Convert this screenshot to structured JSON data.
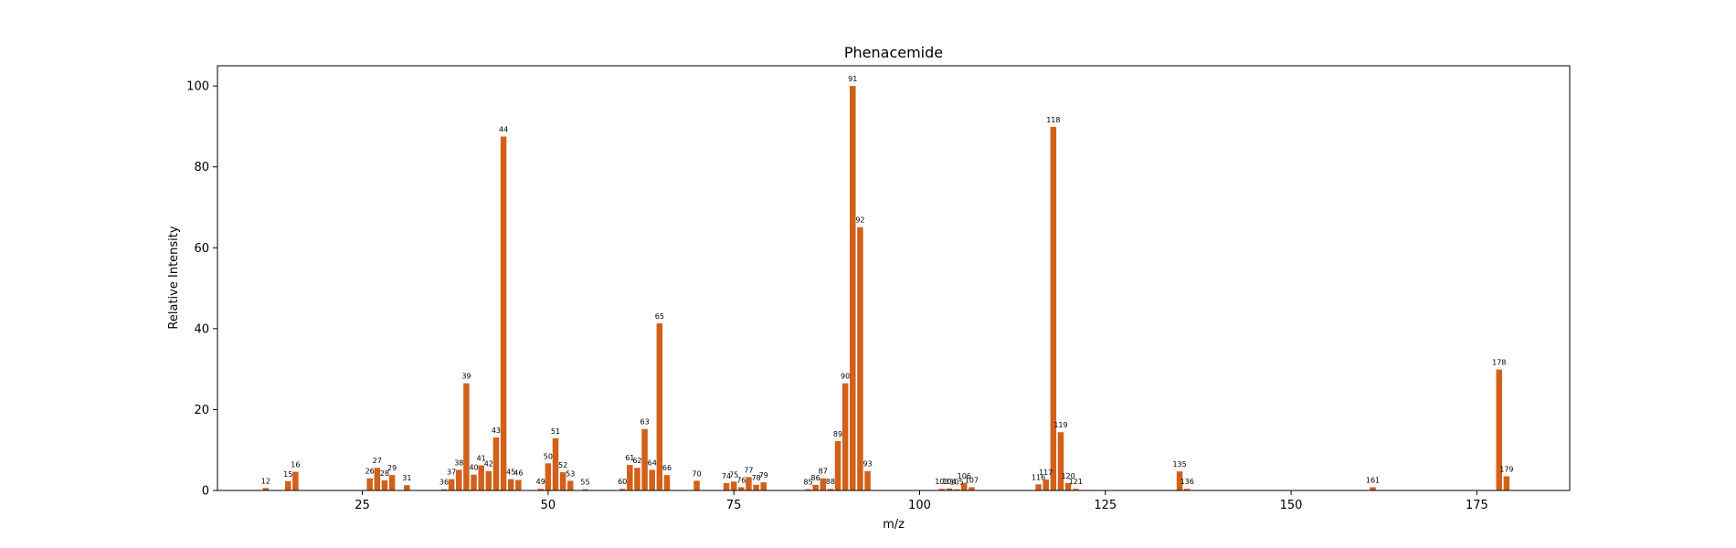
{
  "chart_data": {
    "type": "bar",
    "title": "Phenacemide",
    "xlabel": "m/z",
    "ylabel": "Relative Intensity",
    "xlim": [
      5.5,
      187.5
    ],
    "ylim": [
      0,
      105
    ],
    "xticks": [
      25,
      50,
      75,
      100,
      125,
      150,
      175
    ],
    "yticks": [
      0,
      20,
      40,
      60,
      80,
      100
    ],
    "bar_color": "#d2601a",
    "grid": false,
    "legend": "none",
    "x": [
      12,
      15,
      16,
      26,
      27,
      28,
      29,
      31,
      36,
      37,
      38,
      39,
      40,
      41,
      42,
      43,
      44,
      45,
      46,
      49,
      50,
      51,
      52,
      53,
      55,
      60,
      61,
      62,
      63,
      64,
      65,
      66,
      70,
      74,
      75,
      76,
      77,
      78,
      79,
      85,
      86,
      87,
      88,
      89,
      90,
      91,
      92,
      93,
      103,
      104,
      105,
      106,
      107,
      116,
      117,
      118,
      119,
      120,
      121,
      135,
      136,
      161,
      178,
      179
    ],
    "labels": [
      "12",
      "15",
      "16",
      "26",
      "27",
      "28",
      "29",
      "31",
      "36",
      "37",
      "38",
      "39",
      "40",
      "41",
      "42",
      "43",
      "44",
      "45",
      "46",
      "49",
      "50",
      "51",
      "52",
      "53",
      "55",
      "60",
      "61",
      "62",
      "63",
      "64",
      "65",
      "66",
      "70",
      "74",
      "75",
      "76",
      "77",
      "78",
      "79",
      "85",
      "86",
      "87",
      "88",
      "89",
      "90",
      "91",
      "92",
      "93",
      "103",
      "104",
      "105",
      "106",
      "107",
      "116",
      "117",
      "118",
      "119",
      "120",
      "121",
      "135",
      "136",
      "161",
      "178",
      "179"
    ],
    "values": [
      0.6,
      2.3,
      4.6,
      3.0,
      5.6,
      2.5,
      3.8,
      1.3,
      0.3,
      2.8,
      5.1,
      26.5,
      3.9,
      6.2,
      4.8,
      13.1,
      87.5,
      2.8,
      2.6,
      0.4,
      6.7,
      12.9,
      4.5,
      2.4,
      0.3,
      0.4,
      6.3,
      5.6,
      15.2,
      5.1,
      41.3,
      3.8,
      2.4,
      1.8,
      2.2,
      0.8,
      3.3,
      1.4,
      2.0,
      0.3,
      1.4,
      3.0,
      0.4,
      12.2,
      26.5,
      100.0,
      65.1,
      4.8,
      0.4,
      0.5,
      0.3,
      1.8,
      0.8,
      1.5,
      2.7,
      89.9,
      14.4,
      1.8,
      0.4,
      4.7,
      0.4,
      0.8,
      29.9,
      3.5
    ]
  }
}
